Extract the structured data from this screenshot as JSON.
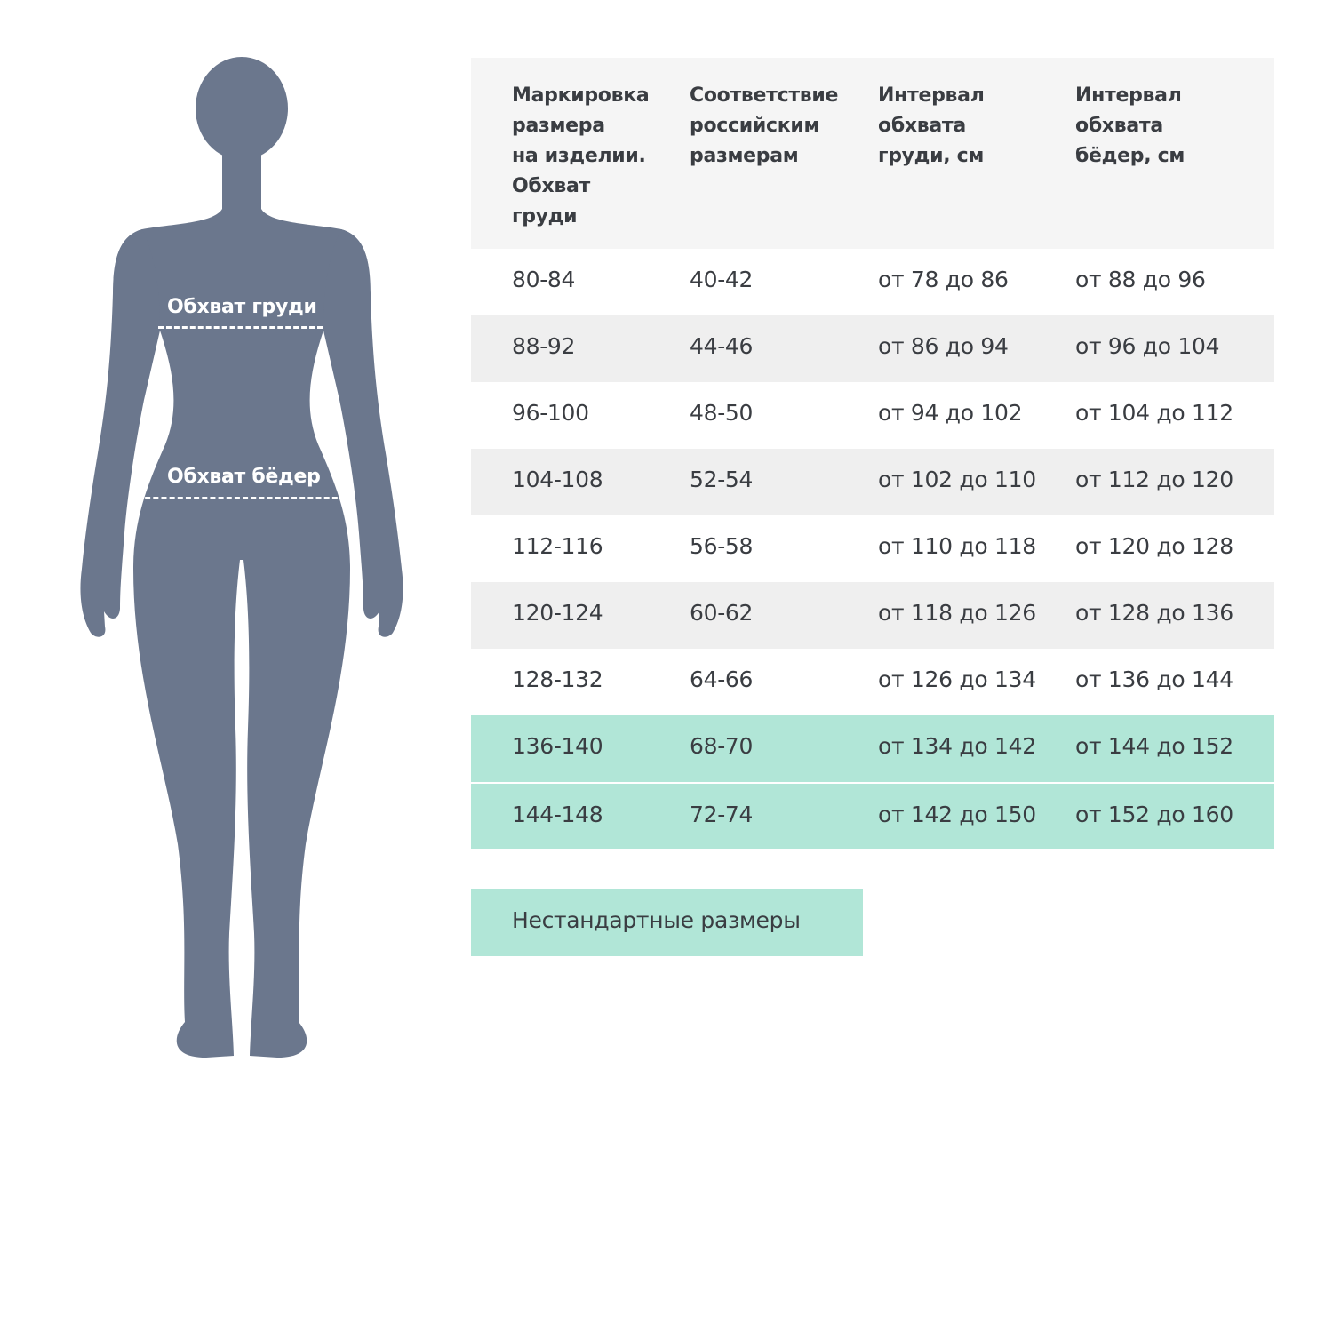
{
  "colors": {
    "figure": "#6b778d",
    "header_bg": "#f5f5f5",
    "alt_row": "#efefef",
    "highlight": "#b1e6d7"
  },
  "figure": {
    "chest_label": "Обхват груди",
    "hips_label": "Обхват бёдер"
  },
  "table": {
    "headers": [
      "Маркировка размера на изделии. Обхват груди",
      "Соответствие российским размерам",
      "Интервал обхвата груди, см",
      "Интервал обхвата бёдер, см"
    ],
    "header_lines": [
      [
        "Маркировка",
        "размера",
        "на изделии.",
        "Обхват",
        "груди"
      ],
      [
        "Соответствие",
        "российским",
        "размерам"
      ],
      [
        "Интервал",
        "обхвата",
        "груди, см"
      ],
      [
        "Интервал",
        "обхвата",
        "бёдер, см"
      ]
    ],
    "rows": [
      [
        "80-84",
        "40-42",
        "от 78 до 86",
        "от 88 до 96"
      ],
      [
        "88-92",
        "44-46",
        "от 86 до 94",
        "от 96 до 104"
      ],
      [
        "96-100",
        "48-50",
        "от 94 до 102",
        "от 104 до 112"
      ],
      [
        "104-108",
        "52-54",
        "от 102 до 110",
        "от 112 до 120"
      ],
      [
        "112-116",
        "56-58",
        "от 110 до 118",
        "от 120 до 128"
      ],
      [
        "120-124",
        "60-62",
        "от 118 до 126",
        "от 128 до 136"
      ],
      [
        "128-132",
        "64-66",
        "от 126 до 134",
        "от 136 до 144"
      ],
      [
        "136-140",
        "68-70",
        "от 134 до 142",
        "от 144 до 152"
      ],
      [
        "144-148",
        "72-74",
        "от 142 до 150",
        "от 152 до 160"
      ]
    ],
    "highlighted_rows": [
      7,
      8
    ]
  },
  "legend": {
    "nonstandard_label": "Нестандартные размеры"
  }
}
